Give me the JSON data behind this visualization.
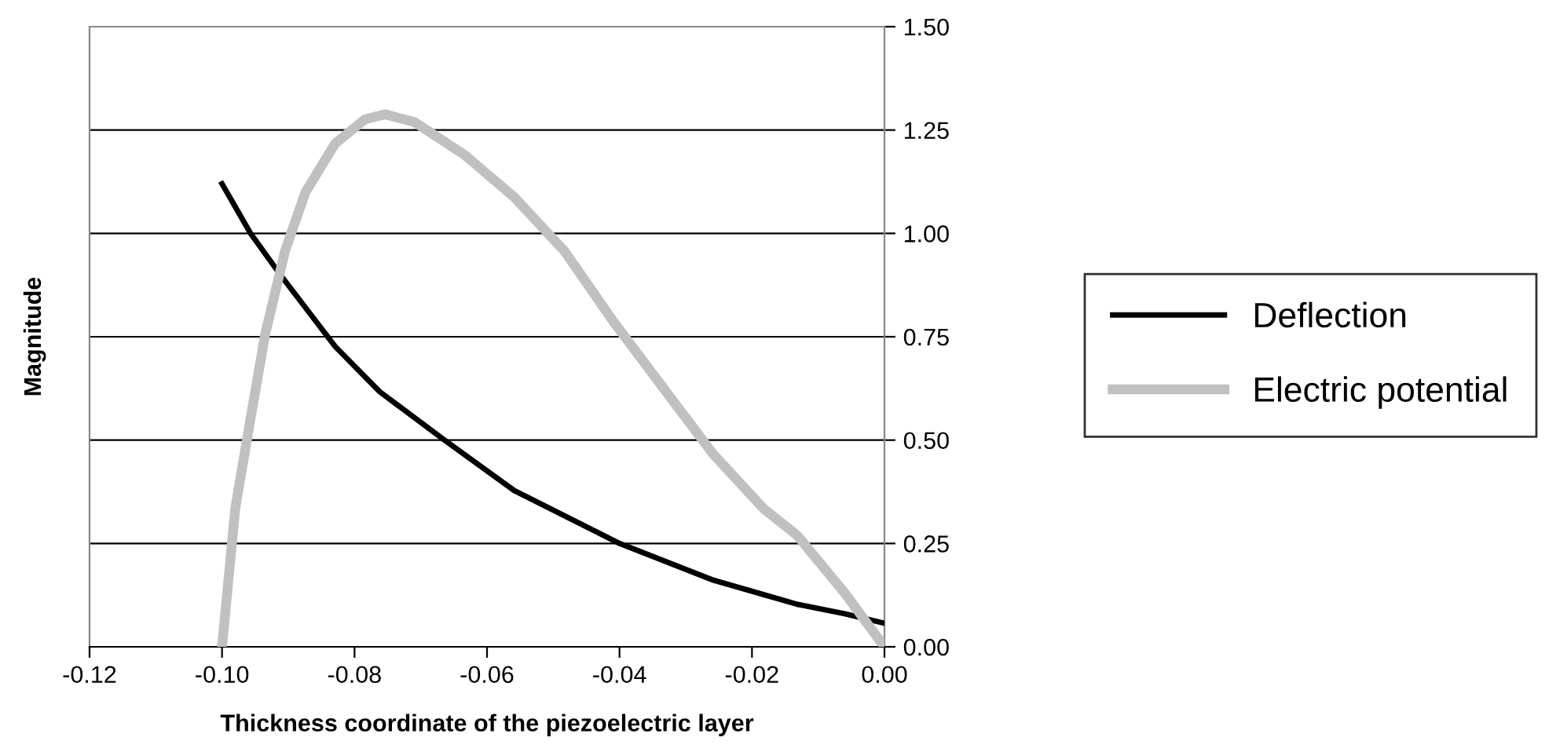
{
  "chart_data": {
    "type": "line",
    "xlabel": "Thickness coordinate of the piezoelectric layer",
    "ylabel": "Magnitude",
    "xlim": [
      -0.12,
      0.0
    ],
    "xticks": [
      {
        "value": -0.12,
        "label": "-0.12"
      },
      {
        "value": -0.1,
        "label": "-0.10"
      },
      {
        "value": -0.08,
        "label": "-0.08"
      },
      {
        "value": -0.06,
        "label": "-0.06"
      },
      {
        "value": -0.04,
        "label": "-0.04"
      },
      {
        "value": -0.02,
        "label": "-0.02"
      },
      {
        "value": 0.0,
        "label": "0.00"
      }
    ],
    "ylim": [
      0,
      1.5
    ],
    "yticks": [
      {
        "value": 0,
        "label": "0.00"
      },
      {
        "value": 0.25,
        "label": "0.25"
      },
      {
        "value": 0.5,
        "label": "0.50"
      },
      {
        "value": 0.75,
        "label": "0.75"
      },
      {
        "value": 1.0,
        "label": "1.00"
      },
      {
        "value": 1.25,
        "label": "1.25"
      },
      {
        "value": 1.5,
        "label": "1.50"
      }
    ],
    "grid": "y",
    "legend": "right",
    "marker": "none",
    "line_style": "solid",
    "series": [
      {
        "name": "Deflection",
        "color": "#000000",
        "x": [
          -0.1,
          -0.0957,
          -0.0912,
          -0.0829,
          -0.0762,
          -0.0664,
          -0.0559,
          -0.04,
          -0.0258,
          -0.0132,
          -0.006,
          0.0
        ],
        "values": [
          1.12,
          1.0,
          0.9,
          0.726,
          0.617,
          0.5,
          0.378,
          0.25,
          0.161,
          0.103,
          0.08,
          0.057
        ]
      },
      {
        "name": "Electric potential",
        "color": "#c0c0c0",
        "x": [
          -0.1,
          -0.098,
          -0.0957,
          -0.0935,
          -0.0905,
          -0.0874,
          -0.0829,
          -0.0784,
          -0.0754,
          -0.0709,
          -0.0634,
          -0.0559,
          -0.0483,
          -0.0408,
          -0.0333,
          -0.0258,
          -0.0183,
          -0.0132,
          -0.006,
          0.0
        ],
        "values": [
          0,
          0.335,
          0.552,
          0.755,
          0.957,
          1.1,
          1.218,
          1.276,
          1.288,
          1.269,
          1.19,
          1.088,
          0.957,
          0.784,
          0.624,
          0.465,
          0.335,
          0.27,
          0.13,
          0.0
        ]
      }
    ]
  }
}
